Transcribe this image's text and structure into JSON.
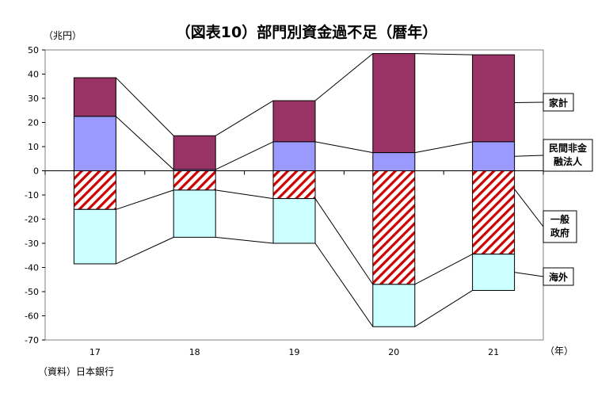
{
  "chart_data": {
    "type": "bar",
    "title": "（図表10）部門別資金過不足（暦年）",
    "ylabel": "（兆円）",
    "xlabel": "（年）",
    "source": "（資料）日本銀行",
    "categories": [
      "17",
      "18",
      "19",
      "20",
      "21"
    ],
    "ylim": [
      -70,
      50
    ],
    "yticks": [
      50,
      40,
      30,
      20,
      10,
      0,
      -10,
      -20,
      -30,
      -40,
      -50,
      -60,
      -70
    ],
    "grid": false,
    "stacked": true,
    "legend_placement": "right",
    "series": [
      {
        "name": "家計",
        "color": "#993366",
        "values": [
          16,
          14,
          17,
          41,
          36
        ]
      },
      {
        "name": "民間非金融法人",
        "legend_lines": [
          "民間非金",
          "融法人"
        ],
        "color": "#9999ff",
        "values": [
          22.5,
          0.5,
          12,
          7.5,
          12
        ]
      },
      {
        "name": "一般政府",
        "legend_lines": [
          "一般",
          "政府"
        ],
        "color": "#cc0000",
        "hatched": true,
        "values": [
          -16,
          -8,
          -11.5,
          -47,
          -34.5
        ]
      },
      {
        "name": "海外",
        "color": "#ccffff",
        "values": [
          -22.5,
          -19.5,
          -18.5,
          -17.5,
          -15
        ]
      }
    ]
  }
}
